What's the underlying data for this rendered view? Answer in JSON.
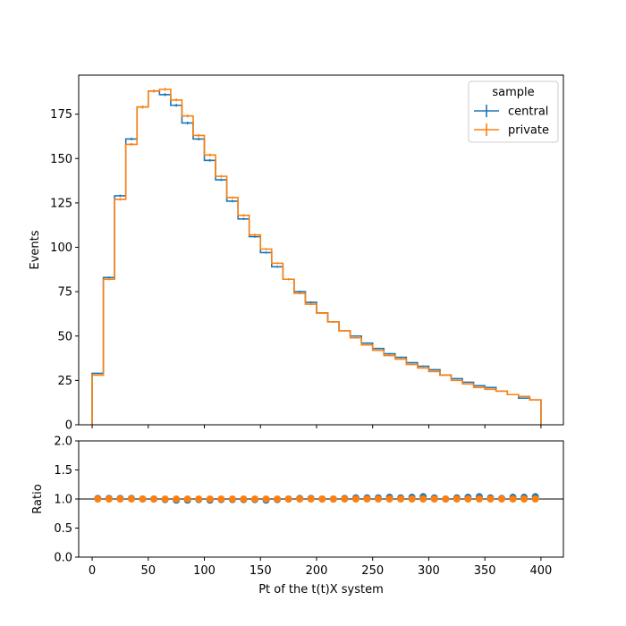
{
  "chart_data": {
    "type": "step-histogram-with-ratio",
    "xlabel": "Pt of the t(t)X system",
    "bin_edges": [
      0,
      10,
      20,
      30,
      40,
      50,
      60,
      70,
      80,
      90,
      100,
      110,
      120,
      130,
      140,
      150,
      160,
      170,
      180,
      190,
      200,
      210,
      220,
      230,
      240,
      250,
      260,
      270,
      280,
      290,
      300,
      310,
      320,
      330,
      340,
      350,
      360,
      370,
      380,
      390,
      400
    ],
    "x_ticks": [
      0,
      50,
      100,
      150,
      200,
      250,
      300,
      350,
      400
    ],
    "x_tick_labels": [
      "0",
      "50",
      "100",
      "150",
      "200",
      "250",
      "300",
      "350",
      "400"
    ],
    "xlim": [
      -12,
      420
    ],
    "main": {
      "ylabel": "Events",
      "ylim": [
        0,
        197
      ],
      "y_ticks": [
        0,
        25,
        50,
        75,
        100,
        125,
        150,
        175
      ],
      "y_tick_labels": [
        "0",
        "25",
        "50",
        "75",
        "100",
        "125",
        "150",
        "175"
      ],
      "series": [
        {
          "name": "central",
          "color": "#1f77b4",
          "values": [
            29,
            83,
            129,
            161,
            179,
            188,
            186,
            180,
            170,
            161,
            149,
            138,
            126,
            116,
            106,
            97,
            89,
            82,
            75,
            69,
            63,
            58,
            53,
            50,
            46,
            43,
            40,
            38,
            35,
            33,
            31,
            28,
            26,
            24,
            22,
            21,
            19,
            17,
            15,
            14
          ]
        },
        {
          "name": "private",
          "color": "#ff7f0e",
          "values": [
            28,
            82,
            127,
            158,
            179,
            188,
            189,
            183,
            174,
            163,
            152,
            140,
            128,
            118,
            107,
            99,
            91,
            82,
            74,
            68,
            63,
            58,
            53,
            49,
            45,
            42,
            39,
            37,
            34,
            32,
            30,
            28,
            25,
            23,
            21,
            20,
            19,
            17,
            16,
            14
          ]
        }
      ],
      "legend": {
        "title": "sample",
        "placement": "top-right"
      }
    },
    "ratio": {
      "ylabel": "Ratio",
      "ylim": [
        0,
        2
      ],
      "y_ticks": [
        0,
        0.5,
        1.0,
        1.5,
        2.0
      ],
      "y_tick_labels": [
        "0.0",
        "0.5",
        "1.0",
        "1.5",
        "2.0"
      ],
      "reference_line": 1.0,
      "series": [
        {
          "name": "central",
          "color": "#1f77b4",
          "values": [
            1.01,
            1.01,
            1.01,
            1.01,
            1.0,
            1.0,
            0.99,
            0.98,
            0.98,
            0.99,
            0.98,
            0.99,
            0.99,
            0.99,
            0.99,
            0.98,
            0.99,
            1.0,
            1.01,
            1.01,
            1.0,
            1.0,
            1.01,
            1.02,
            1.02,
            1.02,
            1.03,
            1.02,
            1.03,
            1.04,
            1.02,
            1.0,
            1.02,
            1.03,
            1.04,
            1.02,
            1.01,
            1.03,
            1.03,
            1.04
          ]
        },
        {
          "name": "private",
          "color": "#ff7f0e",
          "values": [
            1.0,
            1.0,
            1.0,
            1.0,
            1.0,
            1.0,
            1.0,
            1.0,
            1.0,
            1.0,
            1.0,
            1.0,
            1.0,
            1.0,
            1.0,
            1.0,
            1.0,
            1.0,
            1.0,
            1.0,
            1.0,
            1.0,
            1.0,
            1.0,
            1.0,
            1.0,
            1.0,
            1.0,
            1.0,
            1.0,
            1.0,
            1.0,
            1.0,
            1.0,
            1.0,
            1.0,
            1.0,
            1.0,
            1.0,
            1.0
          ]
        }
      ]
    }
  }
}
